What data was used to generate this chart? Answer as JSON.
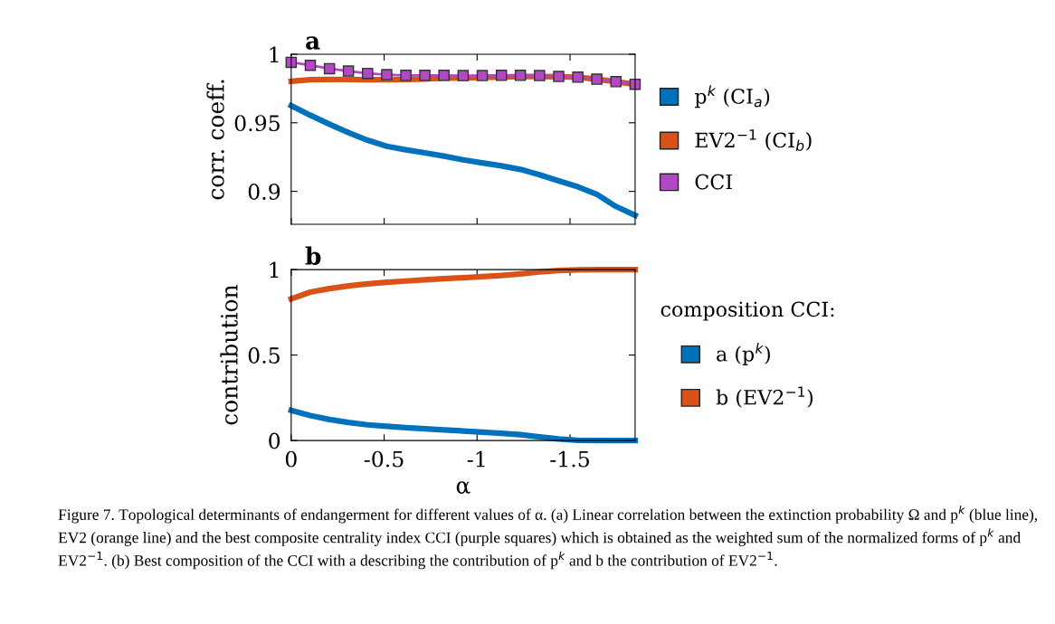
{
  "chart_data": [
    {
      "type": "line",
      "title": "a",
      "ylabel": "corr. coeff.",
      "xlim": [
        0,
        -1.85
      ],
      "ylim": [
        0.876,
        1
      ],
      "xticks": [
        0,
        -0.5,
        -1,
        -1.5
      ],
      "yticks": [
        0.9,
        0.95,
        1
      ],
      "tick_labels": "y",
      "grid": false,
      "legend": "right",
      "x": [
        0,
        -0.103,
        -0.206,
        -0.308,
        -0.411,
        -0.514,
        -0.617,
        -0.719,
        -0.822,
        -0.925,
        -1.028,
        -1.131,
        -1.233,
        -1.336,
        -1.439,
        -1.542,
        -1.644,
        -1.747,
        -1.85
      ],
      "series": [
        {
          "name": "p$^{k}$ (CI$_{a}$)",
          "color": "#0072bd",
          "marker": "none",
          "values": [
            0.9625,
            0.9555,
            0.9489,
            0.9428,
            0.9373,
            0.9329,
            0.9303,
            0.9281,
            0.9257,
            0.923,
            0.9208,
            0.9186,
            0.916,
            0.9121,
            0.9077,
            0.9033,
            0.8978,
            0.889,
            0.8825
          ]
        },
        {
          "name": "EV2$^{−1}$ (CI$_{b}$)",
          "color": "#d95319",
          "marker": "none",
          "values": [
            0.9803,
            0.9814,
            0.9816,
            0.9816,
            0.9814,
            0.9814,
            0.9816,
            0.982,
            0.9825,
            0.9828,
            0.983,
            0.9834,
            0.9838,
            0.9838,
            0.9836,
            0.9832,
            0.9818,
            0.98,
            0.9781
          ]
        },
        {
          "name": "CCI",
          "color": "#b348c4",
          "marker": "square",
          "values": [
            0.9941,
            0.9919,
            0.9895,
            0.9877,
            0.986,
            0.9851,
            0.9846,
            0.9846,
            0.9846,
            0.9844,
            0.9844,
            0.9846,
            0.9846,
            0.9844,
            0.9838,
            0.9833,
            0.9818,
            0.98,
            0.9781
          ]
        }
      ]
    },
    {
      "type": "line",
      "title": "b",
      "xlabel": "α",
      "ylabel": "contribution",
      "legend_title": "composition CCI:",
      "xlim": [
        0,
        -1.85
      ],
      "ylim": [
        0,
        1
      ],
      "xticks": [
        0,
        -0.5,
        -1,
        -1.5
      ],
      "yticks": [
        0,
        0.5,
        1
      ],
      "grid": false,
      "legend": "right",
      "x": [
        0,
        -0.103,
        -0.206,
        -0.308,
        -0.411,
        -0.514,
        -0.617,
        -0.719,
        -0.822,
        -0.925,
        -1.028,
        -1.131,
        -1.233,
        -1.336,
        -1.439,
        -1.542,
        -1.644,
        -1.747,
        -1.85
      ],
      "series": [
        {
          "name": "a (p$^{k}$)",
          "color": "#0072bd",
          "values": [
            0.176,
            0.146,
            0.123,
            0.106,
            0.092,
            0.083,
            0.076,
            0.069,
            0.062,
            0.056,
            0.049,
            0.042,
            0.034,
            0.021,
            0.009,
            0.002,
            0,
            0,
            0
          ]
        },
        {
          "name": "b (EV2$^{−1}$)",
          "color": "#d95319",
          "values": [
            0.829,
            0.868,
            0.889,
            0.905,
            0.917,
            0.926,
            0.933,
            0.94,
            0.947,
            0.952,
            0.959,
            0.966,
            0.975,
            0.986,
            0.995,
            0.998,
            1,
            1,
            1
          ]
        }
      ],
      "annotations": [
        "Figure 7. Topological determinants of endangerment for different values of α. (a) Linear correlation between the extinction probability Ω and p$^{k}$ (blue line), EV2 (orange line) and the best composite centrality index CCI (purple squares) which is obtained as the weighted sum of the normalized forms of p$^{k}$ and EV2$^{−1}$. (b) Best composition of the CCI with a describing the contribution of p$^{k}$ and b the contribution of EV2$^{−1}$."
      ]
    }
  ]
}
